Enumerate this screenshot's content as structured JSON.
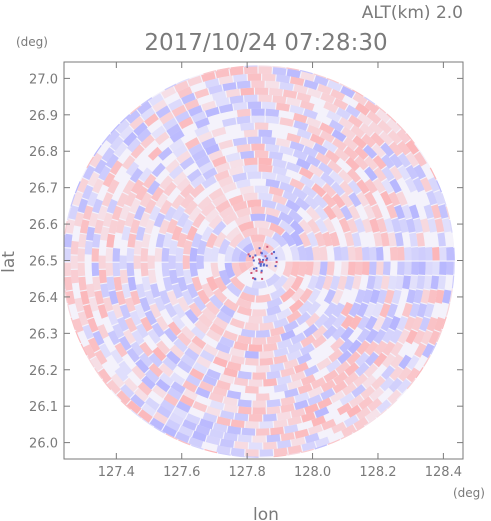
{
  "header": {
    "altitude_label": "ALT(km) 2.0",
    "timestamp": "2017/10/24 07:28:30"
  },
  "chart_data": {
    "type": "heatmap",
    "title": "2017/10/24 07:28:30",
    "subtitle": "ALT(km) 2.0",
    "xlabel": "lon",
    "ylabel": "lat",
    "x_unit": "(deg)",
    "y_unit": "(deg)",
    "xlim": [
      127.24,
      128.46
    ],
    "ylim": [
      25.955,
      27.045
    ],
    "x_ticks": [
      "127.4",
      "127.6",
      "127.8",
      "128.0",
      "128.2",
      "128.4"
    ],
    "x_tick_values": [
      127.4,
      127.6,
      127.8,
      128.0,
      128.2,
      128.4
    ],
    "y_ticks": [
      "26.0",
      "26.1",
      "26.2",
      "26.3",
      "26.4",
      "26.5",
      "26.6",
      "26.7",
      "26.8",
      "26.9",
      "27.0"
    ],
    "y_tick_values": [
      26.0,
      26.1,
      26.2,
      26.3,
      26.4,
      26.5,
      26.6,
      26.7,
      26.8,
      26.9,
      27.0
    ],
    "radar_center": [
      127.835,
      26.497
    ],
    "radar_range_deg": [
      0.6,
      0.545
    ],
    "grid": false,
    "colors": {
      "positive": "#ff9a9a",
      "negative": "#9a9aff",
      "axis": "#7a7a7a",
      "background": "#ffffff"
    }
  }
}
